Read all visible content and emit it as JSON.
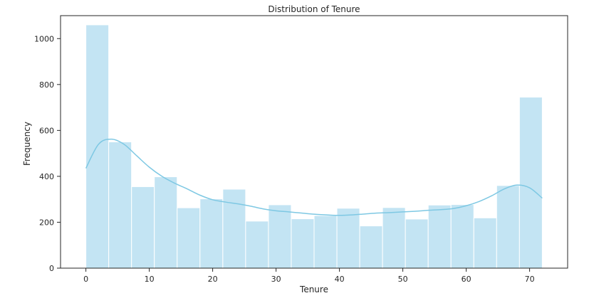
{
  "chart_data": {
    "type": "histogram",
    "title": "Distribution of Tenure",
    "xlabel": "Tenure",
    "ylabel": "Frequency",
    "xlim": [
      -4,
      76
    ],
    "ylim": [
      0,
      1100
    ],
    "xticks": [
      0,
      10,
      20,
      30,
      40,
      50,
      60,
      70
    ],
    "yticks": [
      0,
      200,
      400,
      600,
      800,
      1000
    ],
    "bin_edges": [
      0,
      3.6,
      7.2,
      10.8,
      14.4,
      18,
      21.6,
      25.2,
      28.8,
      32.4,
      36,
      39.6,
      43.2,
      46.8,
      50.4,
      54,
      57.6,
      61.2,
      64.8,
      68.4,
      72
    ],
    "counts": [
      1060,
      550,
      355,
      398,
      263,
      302,
      344,
      205,
      276,
      215,
      229,
      261,
      184,
      264,
      214,
      275,
      277,
      219,
      360,
      745
    ],
    "kde": {
      "x": [
        0,
        2,
        4,
        6,
        8,
        10,
        12,
        14,
        16,
        18,
        20,
        22,
        24,
        26,
        28,
        30,
        32,
        34,
        36,
        38,
        40,
        42,
        44,
        46,
        48,
        50,
        52,
        54,
        56,
        58,
        60,
        62,
        64,
        66,
        68,
        70,
        72
      ],
      "y": [
        435,
        540,
        562,
        540,
        490,
        440,
        400,
        370,
        345,
        318,
        298,
        288,
        280,
        270,
        258,
        250,
        245,
        240,
        235,
        232,
        230,
        232,
        236,
        240,
        242,
        245,
        248,
        252,
        255,
        260,
        272,
        290,
        315,
        345,
        362,
        350,
        305
      ]
    },
    "bar_color": "#c3e4f3",
    "line_color": "#7ec8e3",
    "grid": false,
    "legend": false
  }
}
